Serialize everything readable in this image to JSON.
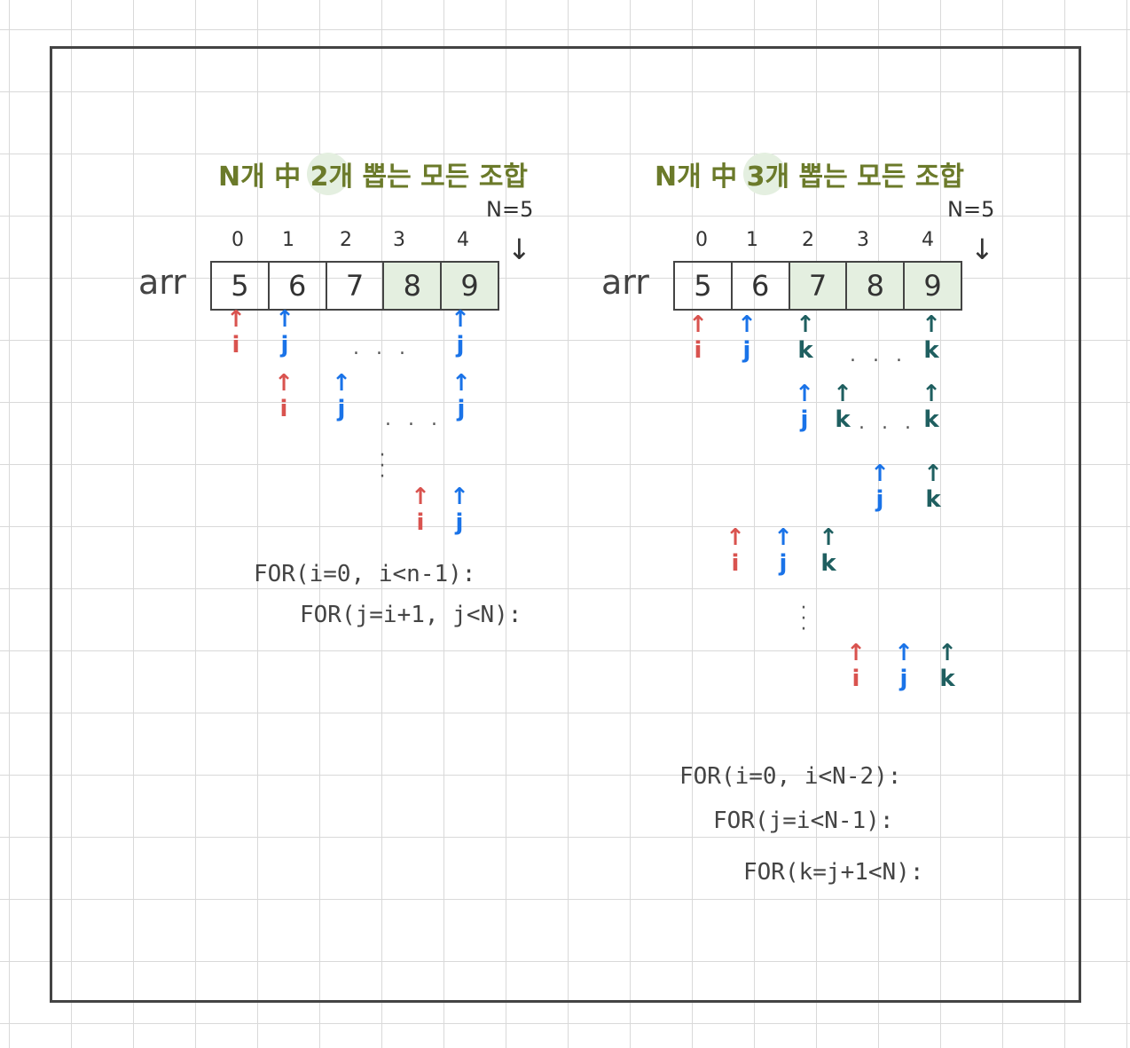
{
  "left": {
    "title_prefix": "N개 中 ",
    "title_num": "2",
    "title_suffix": "개 뽑는 모든 조합",
    "n_label": "N=5",
    "indices": [
      "0",
      "1",
      "2",
      "3",
      "4"
    ],
    "arr_label": "arr",
    "values": [
      "5",
      "6",
      "7",
      "8",
      "9"
    ],
    "pointer_labels": {
      "i": "i",
      "j": "j"
    },
    "dots": ". . .",
    "code_line1": "FOR(i=0, i<n-1):",
    "code_line2": "FOR(j=i+1, j<N):"
  },
  "right": {
    "title_prefix": "N개 中 ",
    "title_num": "3",
    "title_suffix": "개 뽑는 모든 조합",
    "n_label": "N=5",
    "indices": [
      "0",
      "1",
      "2",
      "3",
      "4"
    ],
    "arr_label": "arr",
    "values": [
      "5",
      "6",
      "7",
      "8",
      "9"
    ],
    "pointer_labels": {
      "i": "i",
      "j": "j",
      "k": "k"
    },
    "dots": ". . .",
    "code_line1": "FOR(i=0, i<N-2):",
    "code_line2": "FOR(j=i<N-1):",
    "code_line3": "FOR(k=j+1<N):"
  },
  "colors": {
    "i": "#d9534f",
    "j": "#1a73e8",
    "k": "#1f5f60",
    "title": "#6b7a2a",
    "highlight": "#e4efe0"
  }
}
